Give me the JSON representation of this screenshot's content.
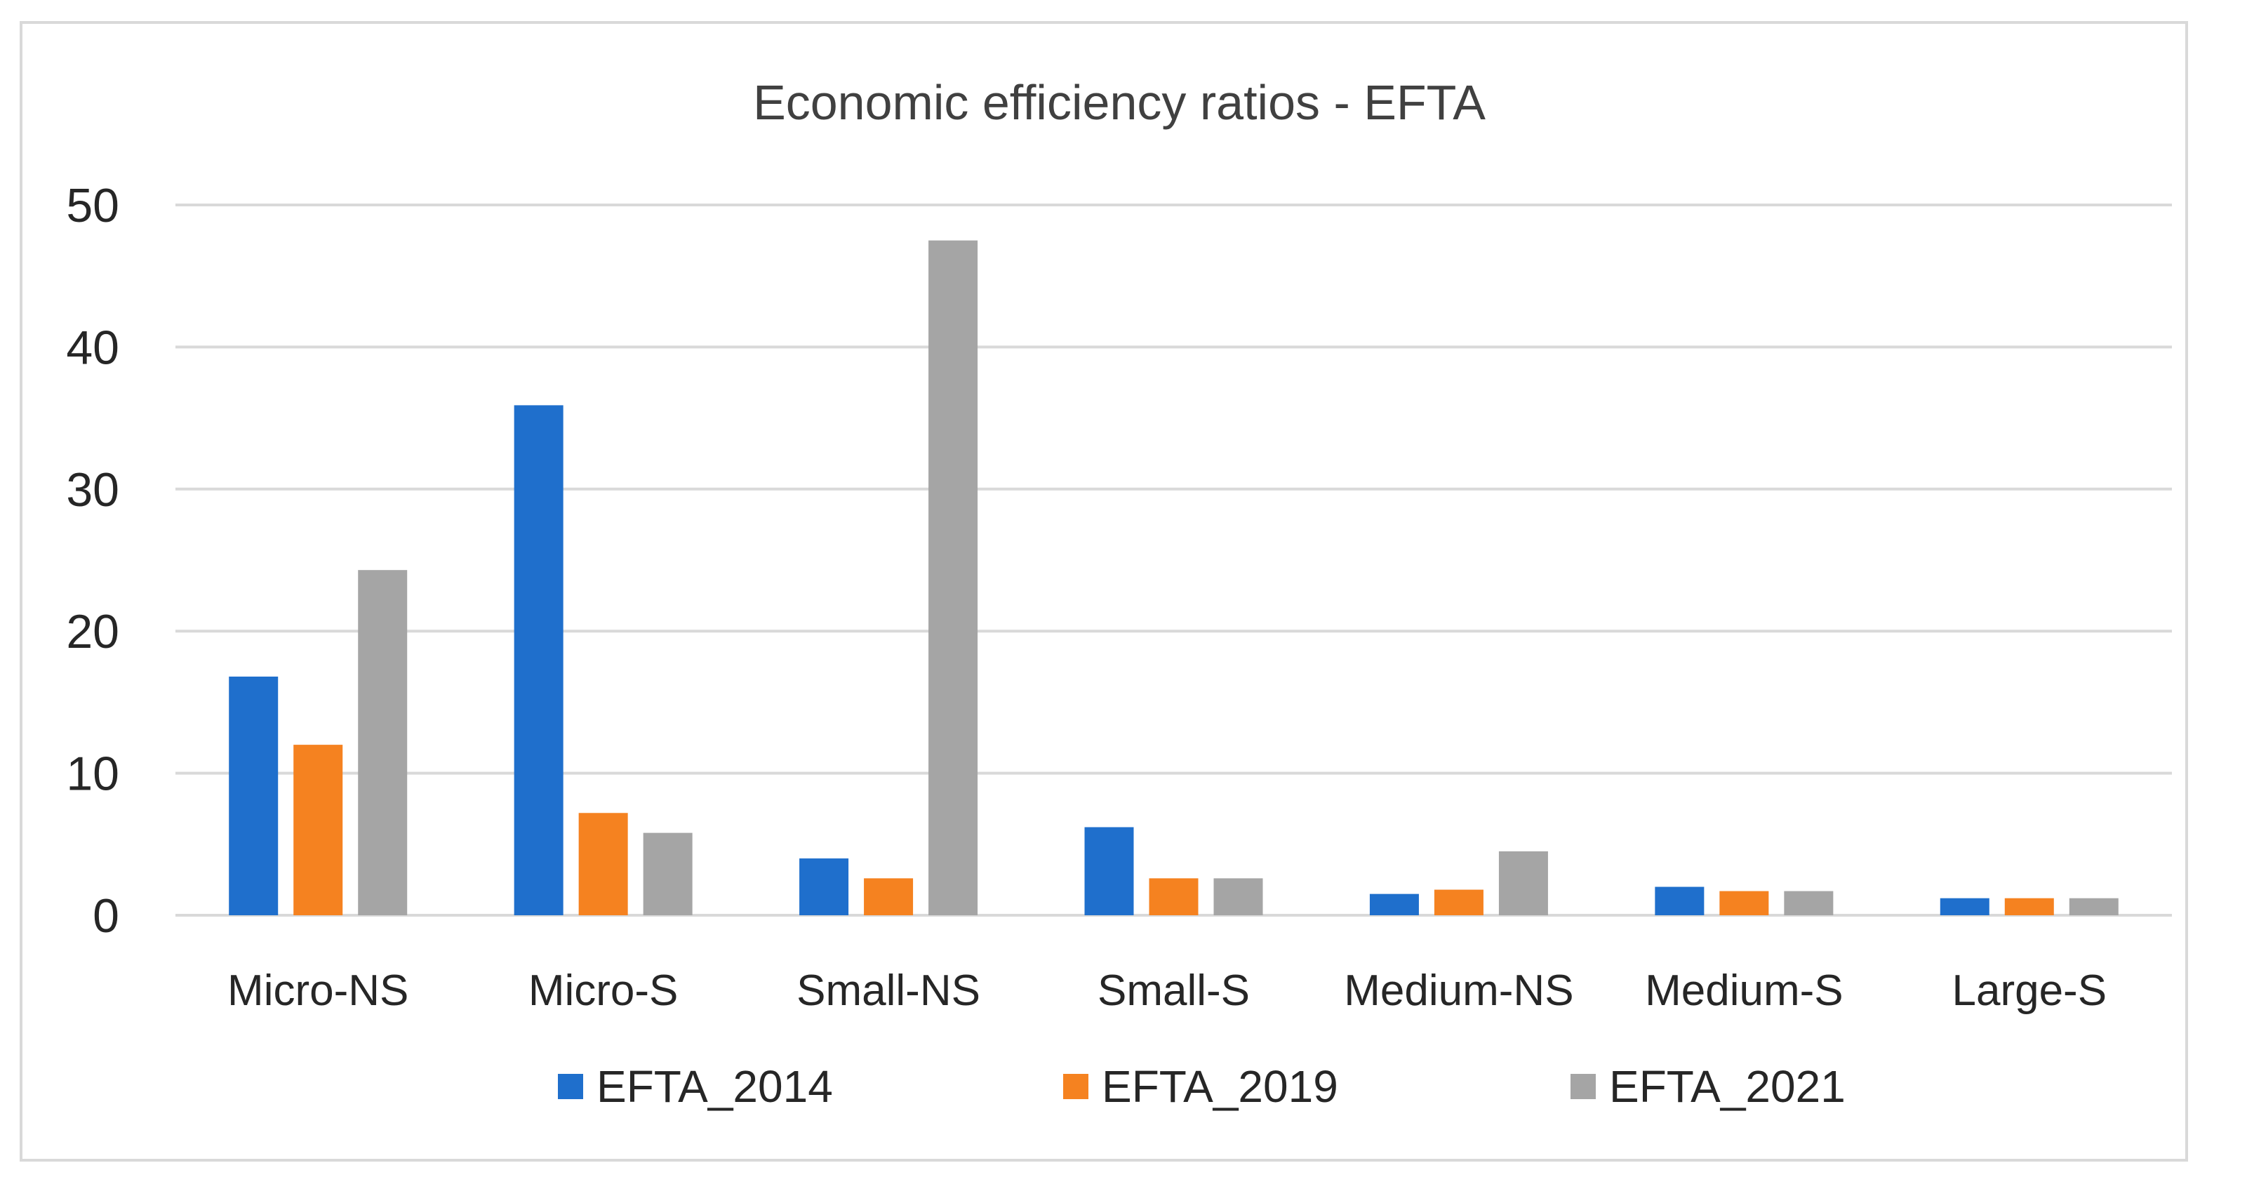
{
  "chart_data": {
    "type": "bar",
    "title": "Economic efficiency ratios - EFTA",
    "xlabel": "",
    "ylabel": "",
    "ylim": [
      0,
      50
    ],
    "yticks": [
      0,
      10,
      20,
      30,
      40,
      50
    ],
    "grid": true,
    "legend_position": "bottom",
    "categories": [
      "Micro-NS",
      "Micro-S",
      "Small-NS",
      "Small-S",
      "Medium-NS",
      "Medium-S",
      "Large-S"
    ],
    "series": [
      {
        "name": "EFTA_2014",
        "color": "#1f6fcc",
        "values": [
          16.8,
          35.9,
          4.0,
          6.2,
          1.5,
          2.0,
          1.2
        ]
      },
      {
        "name": "EFTA_2019",
        "color": "#f58220",
        "values": [
          12.0,
          7.2,
          2.6,
          2.6,
          1.8,
          1.7,
          1.2
        ]
      },
      {
        "name": "EFTA_2021",
        "color": "#a5a5a5",
        "values": [
          24.3,
          5.8,
          47.5,
          2.6,
          4.5,
          1.7,
          1.2
        ]
      }
    ]
  }
}
